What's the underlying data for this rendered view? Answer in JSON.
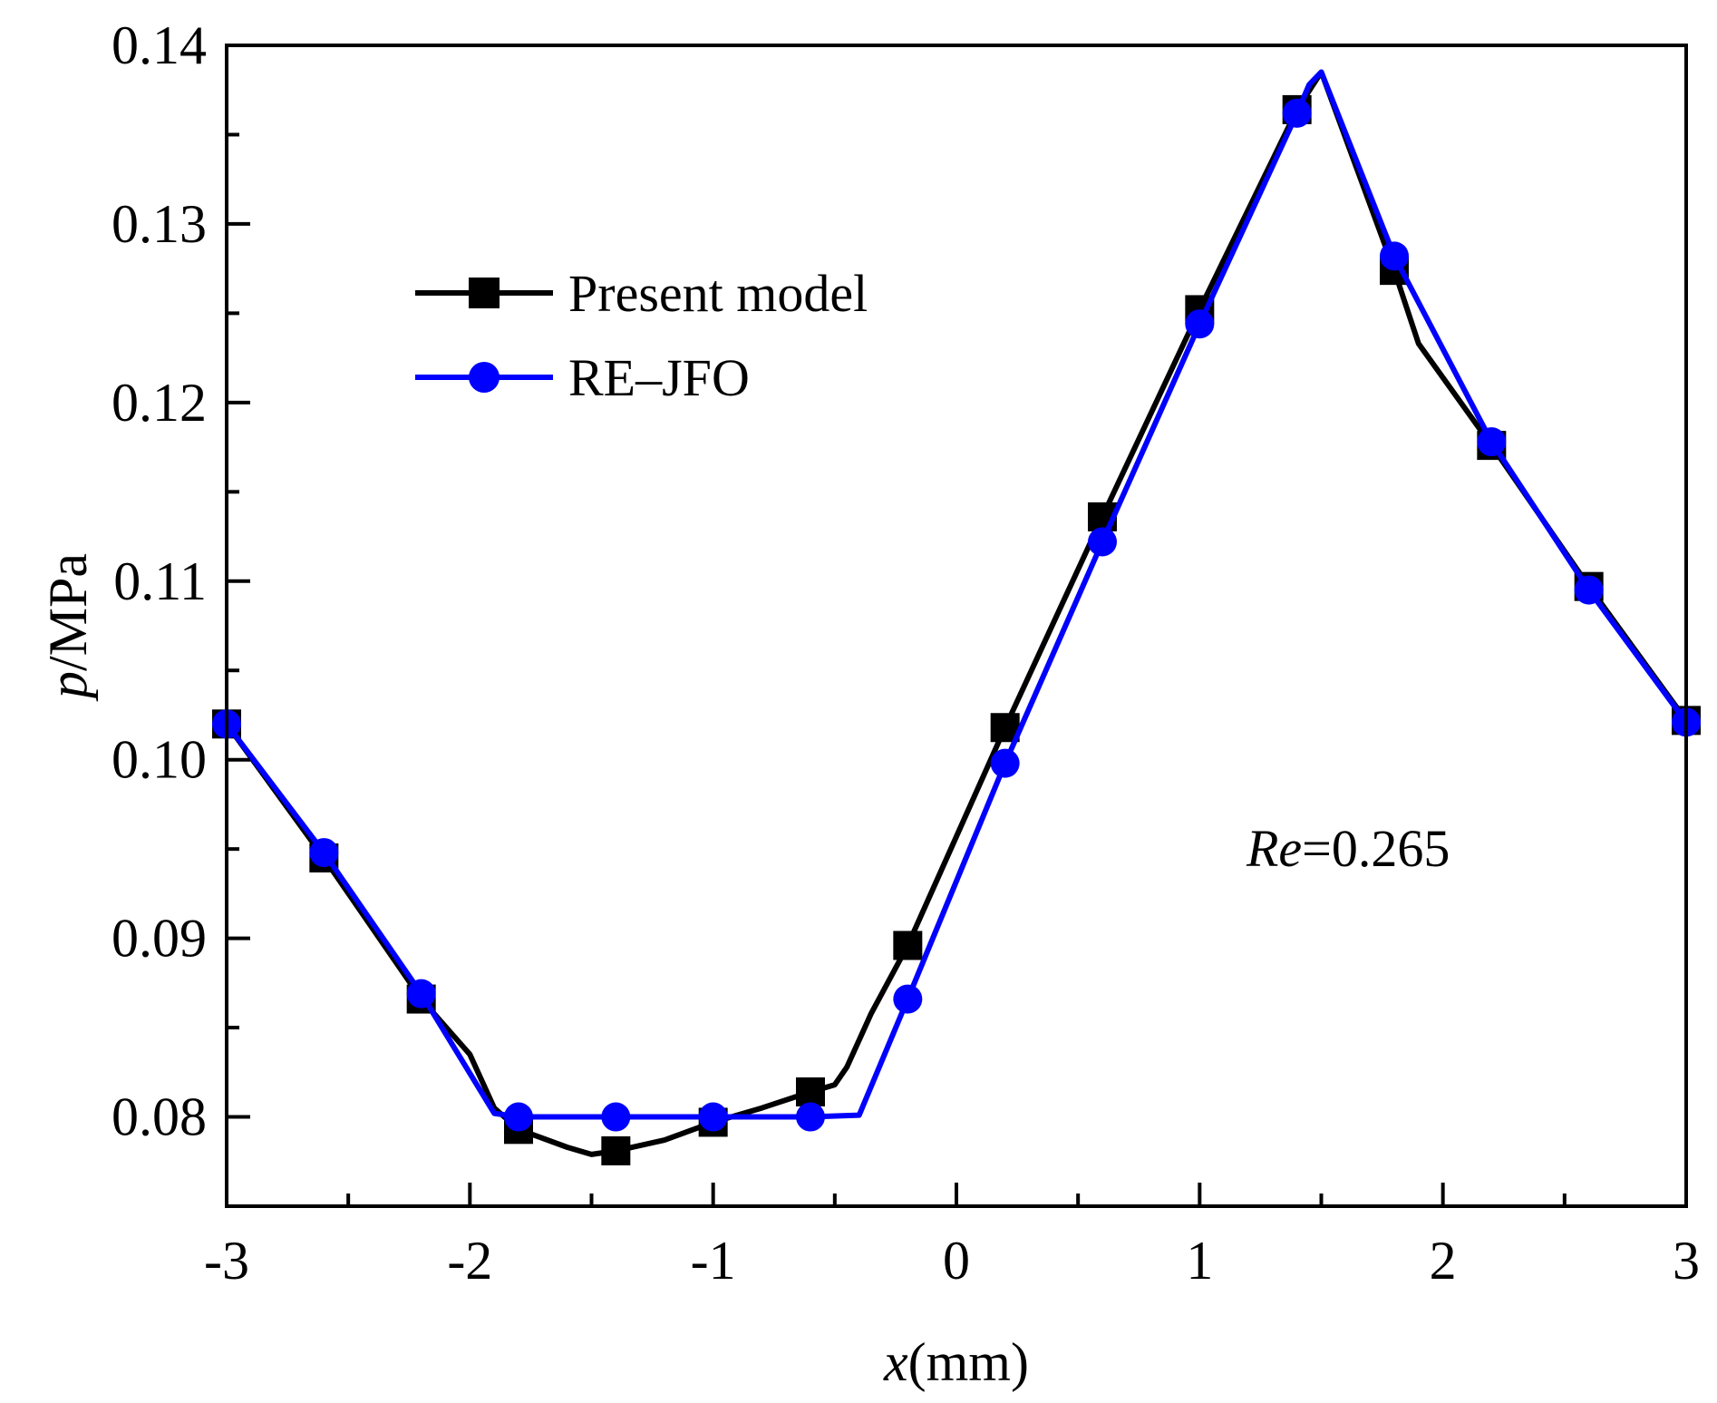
{
  "chart_data": {
    "type": "line",
    "title": "",
    "xlabel": {
      "var": "x",
      "unit": "(mm)"
    },
    "ylabel": {
      "var": "p",
      "unit": "/MPa"
    },
    "xlim": [
      -3,
      3
    ],
    "ylim": [
      0.075,
      0.14
    ],
    "xticks": [
      -3,
      -2,
      -1,
      0,
      1,
      2,
      3
    ],
    "xtick_labels": [
      "-3",
      "-2",
      "-1",
      "0",
      "1",
      "2",
      "3"
    ],
    "yticks": [
      0.08,
      0.09,
      0.1,
      0.11,
      0.12,
      0.13,
      0.14
    ],
    "ytick_labels": [
      "0.08",
      "0.09",
      "0.10",
      "0.11",
      "0.12",
      "0.13",
      "0.14"
    ],
    "grid": false,
    "legend_position": "top-left",
    "annotation": {
      "var": "Re",
      "value": "=0.265"
    },
    "series": [
      {
        "name": "Present model",
        "color": "#000000",
        "marker": "square",
        "line": [
          [
            -3,
            0.102
          ],
          [
            -2.6,
            0.0945
          ],
          [
            -2.2,
            0.0866
          ],
          [
            -2.0,
            0.0835
          ],
          [
            -1.9,
            0.0805
          ],
          [
            -1.8,
            0.0793
          ],
          [
            -1.6,
            0.0783
          ],
          [
            -1.5,
            0.0779
          ],
          [
            -1.4,
            0.0781
          ],
          [
            -1.2,
            0.0787
          ],
          [
            -1.0,
            0.0797
          ],
          [
            -0.8,
            0.0805
          ],
          [
            -0.6,
            0.0814
          ],
          [
            -0.5,
            0.0818
          ],
          [
            -0.45,
            0.0828
          ],
          [
            -0.35,
            0.0858
          ],
          [
            -0.2,
            0.0896
          ],
          [
            0.2,
            0.1018
          ],
          [
            0.6,
            0.1136
          ],
          [
            1.0,
            0.1252
          ],
          [
            1.4,
            0.1364
          ],
          [
            1.5,
            0.1385
          ],
          [
            1.8,
            0.1274
          ],
          [
            1.9,
            0.1233
          ],
          [
            2.2,
            0.1176
          ],
          [
            2.6,
            0.1097
          ],
          [
            3.0,
            0.1022
          ]
        ],
        "markers": [
          [
            -3,
            0.102
          ],
          [
            -2.6,
            0.0945
          ],
          [
            -2.2,
            0.0866
          ],
          [
            -1.8,
            0.0793
          ],
          [
            -1.4,
            0.0781
          ],
          [
            -1.0,
            0.0797
          ],
          [
            -0.6,
            0.0814
          ],
          [
            -0.2,
            0.0896
          ],
          [
            0.2,
            0.1018
          ],
          [
            0.6,
            0.1136
          ],
          [
            1.0,
            0.1252
          ],
          [
            1.4,
            0.1364
          ],
          [
            1.8,
            0.1274
          ],
          [
            2.2,
            0.1176
          ],
          [
            2.6,
            0.1097
          ],
          [
            3.0,
            0.1022
          ]
        ]
      },
      {
        "name": "RE–JFO",
        "color": "#0000ff",
        "marker": "circle",
        "line": [
          [
            -3,
            0.102
          ],
          [
            -2.6,
            0.0948
          ],
          [
            -2.2,
            0.0869
          ],
          [
            -1.9,
            0.0802
          ],
          [
            -1.8,
            0.08
          ],
          [
            -1.4,
            0.08
          ],
          [
            -1.0,
            0.08
          ],
          [
            -0.6,
            0.08
          ],
          [
            -0.4,
            0.0801
          ],
          [
            -0.2,
            0.0866
          ],
          [
            0.2,
            0.0998
          ],
          [
            0.6,
            0.1122
          ],
          [
            1.0,
            0.1244
          ],
          [
            1.4,
            0.1362
          ],
          [
            1.45,
            0.1378
          ],
          [
            1.5,
            0.1385
          ],
          [
            1.8,
            0.1282
          ],
          [
            2.2,
            0.1178
          ],
          [
            2.6,
            0.1095
          ],
          [
            3.0,
            0.1021
          ]
        ],
        "markers": [
          [
            -3,
            0.102
          ],
          [
            -2.6,
            0.0948
          ],
          [
            -2.2,
            0.0869
          ],
          [
            -1.8,
            0.08
          ],
          [
            -1.4,
            0.08
          ],
          [
            -1.0,
            0.08
          ],
          [
            -0.6,
            0.08
          ],
          [
            -0.2,
            0.0866
          ],
          [
            0.2,
            0.0998
          ],
          [
            0.6,
            0.1122
          ],
          [
            1.0,
            0.1244
          ],
          [
            1.4,
            0.1362
          ],
          [
            1.8,
            0.1282
          ],
          [
            2.2,
            0.1178
          ],
          [
            2.6,
            0.1095
          ],
          [
            3.0,
            0.1021
          ]
        ]
      }
    ]
  }
}
